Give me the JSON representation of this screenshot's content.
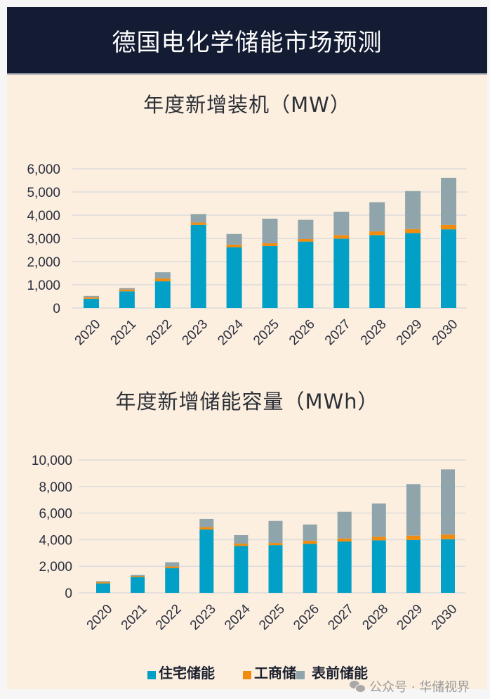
{
  "header": {
    "title": "德国电化学储能市场预测"
  },
  "colors": {
    "residential": "#02a0c6",
    "commercial": "#f28c0f",
    "utility": "#8fa4ab",
    "grid": "#dcdcdc",
    "background": "#fcefe0",
    "header_bg": "#141c33"
  },
  "legend": {
    "items": [
      {
        "label": "住宅储能",
        "key": "residential"
      },
      {
        "label": "工商储",
        "key": "commercial"
      },
      {
        "label": "表前储能",
        "key": "utility"
      }
    ]
  },
  "watermark": {
    "text": "公众号 · 华储视界",
    "icon": "wechat-icon"
  },
  "chart_data": [
    {
      "type": "bar",
      "stacked": true,
      "title": "年度新增装机（MW）",
      "xlabel": "",
      "ylabel": "",
      "ylim": [
        0,
        6000
      ],
      "yticks": [
        0,
        1000,
        2000,
        3000,
        4000,
        5000,
        6000
      ],
      "ytick_labels": [
        "0",
        "1,000",
        "2,000",
        "3,000",
        "4,000",
        "5,000",
        "6,000"
      ],
      "grid": true,
      "categories": [
        "2020",
        "2021",
        "2022",
        "2023",
        "2024",
        "2025",
        "2026",
        "2027",
        "2028",
        "2029",
        "2030"
      ],
      "series": [
        {
          "name": "住宅储能",
          "key": "residential",
          "values": [
            400,
            720,
            1150,
            3580,
            2620,
            2670,
            2860,
            2990,
            3140,
            3230,
            3390
          ]
        },
        {
          "name": "工商储",
          "key": "commercial",
          "values": [
            60,
            80,
            120,
            100,
            110,
            120,
            110,
            150,
            160,
            170,
            190
          ]
        },
        {
          "name": "表前储能",
          "key": "utility",
          "values": [
            60,
            60,
            270,
            370,
            460,
            1060,
            830,
            1010,
            1260,
            1640,
            2030
          ]
        }
      ]
    },
    {
      "type": "bar",
      "stacked": true,
      "title": "年度新增储能容量（MWh）",
      "xlabel": "",
      "ylabel": "",
      "ylim": [
        0,
        10000
      ],
      "yticks": [
        0,
        2000,
        4000,
        6000,
        8000,
        10000
      ],
      "ytick_labels": [
        "0",
        "2,000",
        "4,000",
        "6,000",
        "8,000",
        "10,000"
      ],
      "grid": true,
      "categories": [
        "2020",
        "2021",
        "2022",
        "2023",
        "2024",
        "2025",
        "2026",
        "2027",
        "2028",
        "2029",
        "2030"
      ],
      "series": [
        {
          "name": "住宅储能",
          "key": "residential",
          "values": [
            710,
            1200,
            1850,
            4760,
            3530,
            3590,
            3680,
            3860,
            3950,
            3980,
            4030
          ]
        },
        {
          "name": "工商储",
          "key": "commercial",
          "values": [
            100,
            70,
            130,
            180,
            170,
            160,
            240,
            230,
            260,
            320,
            350
          ]
        },
        {
          "name": "表前储能",
          "key": "utility",
          "values": [
            70,
            70,
            320,
            620,
            640,
            1660,
            1220,
            2010,
            2510,
            3880,
            4910
          ]
        }
      ]
    }
  ]
}
